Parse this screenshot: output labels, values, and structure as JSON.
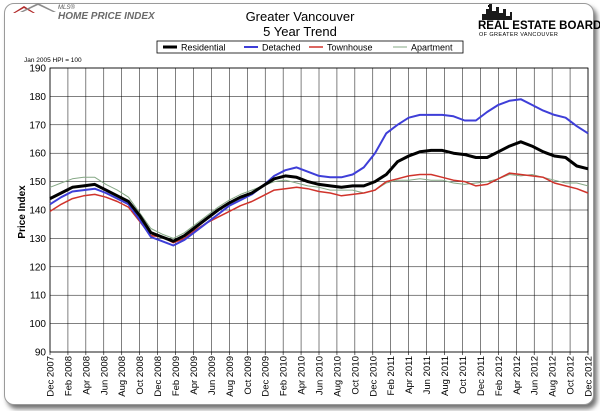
{
  "header": {
    "mls_logo_sup": "MLS®",
    "mls_logo_text": "HOME PRICE INDEX",
    "reb_logo_main": "REAL ESTATE BOARD",
    "reb_logo_sub": "OF GREATER VANCOUVER"
  },
  "chart_data": {
    "type": "line",
    "title": "Greater Vancouver",
    "subtitle": "5 Year Trend",
    "base_note": "Jan 2005 HPI = 100",
    "ylabel": "Price Index",
    "xlabel": "",
    "ylim": [
      90,
      190
    ],
    "y_ticks": [
      90,
      100,
      110,
      120,
      130,
      140,
      150,
      160,
      170,
      180,
      190
    ],
    "grid": true,
    "legend_placement": "top-center",
    "x_tick_labels": [
      "Dec 2007",
      "Feb 2008",
      "Apr 2008",
      "Jun 2008",
      "Aug 2008",
      "Oct 2008",
      "Dec 2008",
      "Feb 2009",
      "Apr 2009",
      "Jun 2009",
      "Aug 2009",
      "Oct 2009",
      "Dec 2009",
      "Feb 2010",
      "Apr 2010",
      "Jun 2010",
      "Aug 2010",
      "Oct 2010",
      "Dec 2010",
      "Feb 2011",
      "Apr 2011",
      "Jun 2011",
      "Aug 2011",
      "Oct 2011",
      "Dec 2011",
      "Feb 2012",
      "Apr 2012",
      "Jun 2012",
      "Aug 2012",
      "Oct 2012",
      "Dec 2012"
    ],
    "series": [
      {
        "name": "Residential",
        "color": "#000000",
        "width": 3,
        "values": [
          144,
          146,
          148,
          148.5,
          149,
          147,
          145,
          143,
          138,
          132,
          130.5,
          129,
          131,
          134,
          137,
          140,
          142.5,
          144.5,
          146,
          148.5,
          151,
          152,
          151.5,
          150,
          149,
          148.5,
          148,
          148.5,
          148.5,
          150,
          152.5,
          157,
          159,
          160.5,
          161,
          161,
          160,
          159.5,
          158.5,
          158.5,
          160.5,
          162.5,
          164,
          162.5,
          160.5,
          159,
          158.5,
          155.5,
          154.5
        ]
      },
      {
        "name": "Detached",
        "color": "#3e3ed8",
        "width": 2,
        "values": [
          142,
          144.5,
          146.5,
          147,
          147.5,
          146,
          144,
          142,
          136.5,
          130.5,
          129,
          127.5,
          129.5,
          132.5,
          135.5,
          138.5,
          141.5,
          143.5,
          145.5,
          148.5,
          152,
          154,
          155,
          153.5,
          152,
          151.5,
          151.5,
          152.5,
          155,
          160,
          167,
          170,
          172.5,
          173.5,
          173.5,
          173.5,
          173,
          171.5,
          171.5,
          174.5,
          177,
          178.5,
          179,
          177,
          175,
          173.5,
          172.5,
          169.5,
          167
        ]
      },
      {
        "name": "Townhouse",
        "color": "#d0332b",
        "width": 1.5,
        "values": [
          139.5,
          142,
          144,
          145,
          145.5,
          144.5,
          143,
          141,
          136,
          131,
          130.5,
          128.5,
          130,
          133,
          135.5,
          137.5,
          139.5,
          141.5,
          143,
          145,
          147,
          147.5,
          148,
          147.5,
          146.5,
          146,
          145,
          145.5,
          146,
          147,
          150,
          151,
          152,
          152.5,
          152.5,
          151.5,
          150.5,
          150,
          148.5,
          149,
          151,
          153,
          152.5,
          152,
          151.5,
          149.5,
          148.5,
          147.5,
          146
        ]
      },
      {
        "name": "Apartment",
        "color": "#86a886",
        "width": 1,
        "values": [
          148,
          149.5,
          151,
          151.5,
          151.5,
          149,
          147,
          144.5,
          139,
          133.5,
          131.5,
          130,
          132,
          135,
          138,
          141,
          143.5,
          145.5,
          147,
          148.5,
          150,
          150.5,
          149.5,
          148.5,
          148,
          147,
          147,
          147,
          146,
          147,
          149.5,
          150.5,
          150.5,
          151,
          150.5,
          150.5,
          149.5,
          149,
          149.5,
          150,
          151,
          152.5,
          152,
          152.5,
          151.5,
          150.5,
          149.5,
          149.5,
          148.5
        ]
      }
    ]
  }
}
